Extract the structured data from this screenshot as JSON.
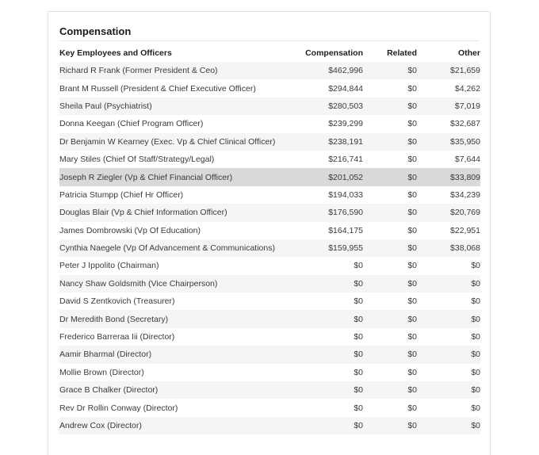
{
  "section": {
    "title": "Compensation"
  },
  "table": {
    "headers": {
      "name": "Key Employees and Officers",
      "compensation": "Compensation",
      "related": "Related",
      "other": "Other"
    },
    "highlighted_row": 6,
    "rows": [
      {
        "name": "Richard R Frank (Former President & Ceo)",
        "compensation": "$462,996",
        "related": "$0",
        "other": "$21,659"
      },
      {
        "name": "Brant M Russell (President & Chief Executive Officer)",
        "compensation": "$294,844",
        "related": "$0",
        "other": "$4,262"
      },
      {
        "name": "Sheila Paul (Psychiatrist)",
        "compensation": "$280,503",
        "related": "$0",
        "other": "$7,019"
      },
      {
        "name": "Donna Keegan (Chief Program Officer)",
        "compensation": "$239,299",
        "related": "$0",
        "other": "$32,687"
      },
      {
        "name": "Dr Benjamin W Kearney (Exec. Vp & Chief Clinical Officer)",
        "compensation": "$238,191",
        "related": "$0",
        "other": "$35,950"
      },
      {
        "name": "Mary Stiles (Chief Of Staff/Strategy/Legal)",
        "compensation": "$216,741",
        "related": "$0",
        "other": "$7,644"
      },
      {
        "name": "Joseph R Ziegler (Vp & Chief Financial Officer)",
        "compensation": "$201,052",
        "related": "$0",
        "other": "$33,809"
      },
      {
        "name": "Patricia Stumpp (Chief Hr Officer)",
        "compensation": "$194,033",
        "related": "$0",
        "other": "$34,239"
      },
      {
        "name": "Douglas Blair (Vp & Chief Information Officer)",
        "compensation": "$176,590",
        "related": "$0",
        "other": "$20,769"
      },
      {
        "name": "James Dombrowski (Vp Of Education)",
        "compensation": "$164,175",
        "related": "$0",
        "other": "$22,951"
      },
      {
        "name": "Cynthia Naegele (Vp Of Advancement & Communications)",
        "compensation": "$159,955",
        "related": "$0",
        "other": "$38,068"
      },
      {
        "name": "Peter J Ippolito (Chairman)",
        "compensation": "$0",
        "related": "$0",
        "other": "$0"
      },
      {
        "name": "Nancy Shaw Goldsmith (Vice Chairperson)",
        "compensation": "$0",
        "related": "$0",
        "other": "$0"
      },
      {
        "name": "David S Zentkovich (Treasurer)",
        "compensation": "$0",
        "related": "$0",
        "other": "$0"
      },
      {
        "name": "Dr Meredith Bond (Secretary)",
        "compensation": "$0",
        "related": "$0",
        "other": "$0"
      },
      {
        "name": "Frederico Barreraa Iii (Director)",
        "compensation": "$0",
        "related": "$0",
        "other": "$0"
      },
      {
        "name": "Aamir Bharmal (Director)",
        "compensation": "$0",
        "related": "$0",
        "other": "$0"
      },
      {
        "name": "Mollie Brown (Director)",
        "compensation": "$0",
        "related": "$0",
        "other": "$0"
      },
      {
        "name": "Grace B Chalker (Director)",
        "compensation": "$0",
        "related": "$0",
        "other": "$0"
      },
      {
        "name": "Rev Dr Rollin Conway (Director)",
        "compensation": "$0",
        "related": "$0",
        "other": "$0"
      },
      {
        "name": "Andrew Cox (Director)",
        "compensation": "$0",
        "related": "$0",
        "other": "$0"
      }
    ]
  }
}
